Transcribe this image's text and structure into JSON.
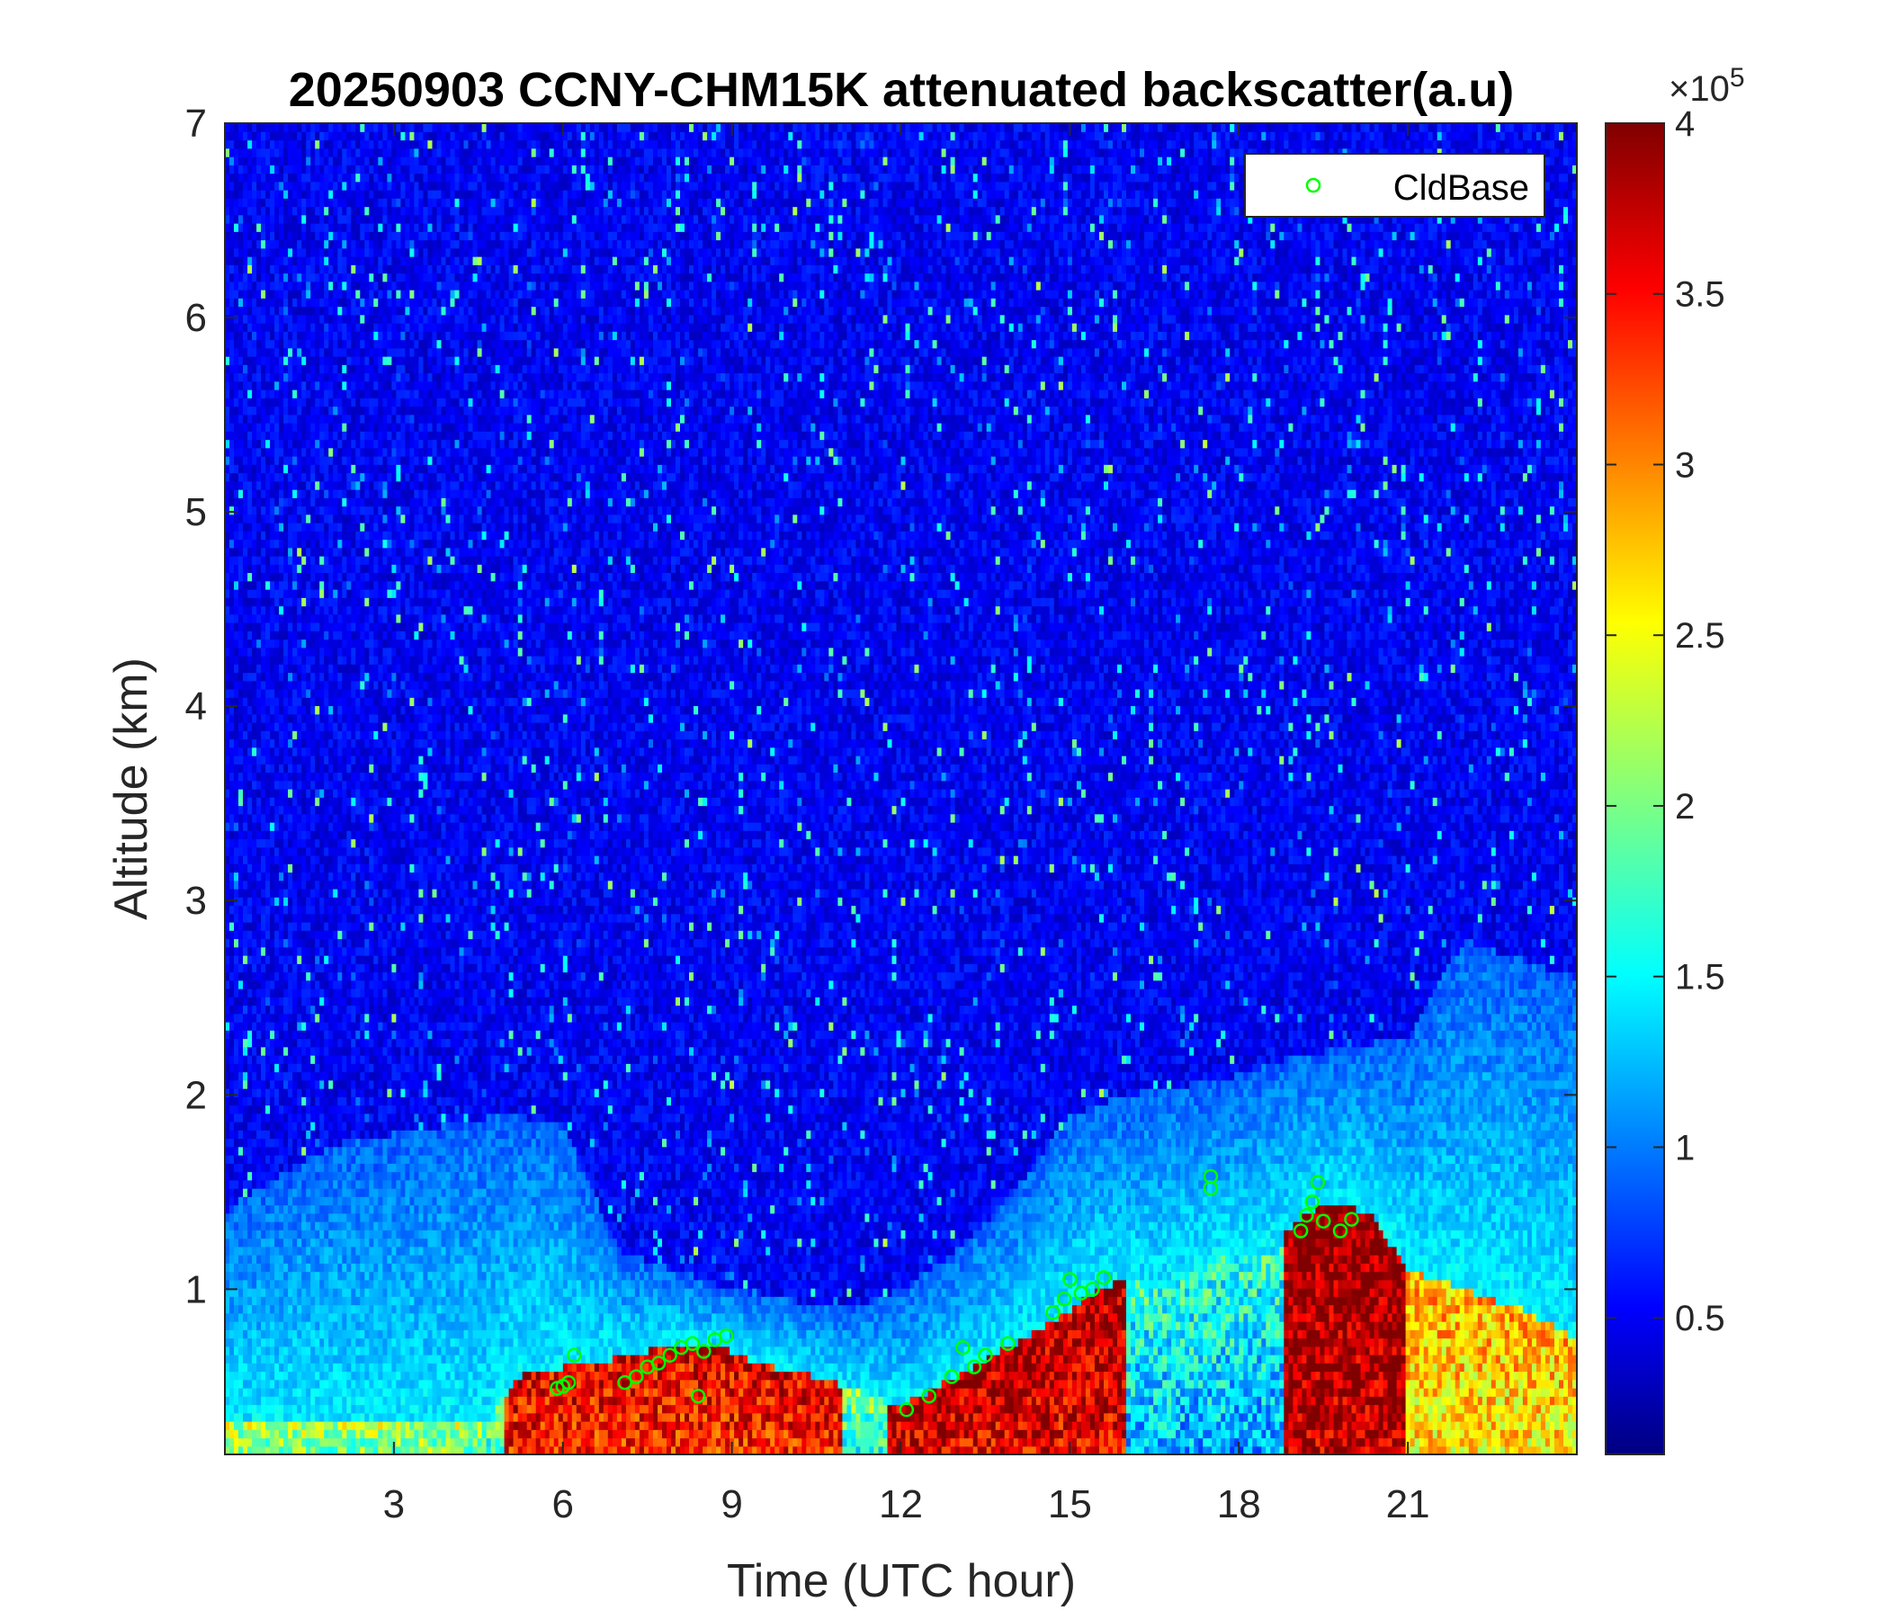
{
  "chart_data": {
    "type": "heatmap",
    "title": "20250903 CCNY-CHM15K attenuated backscatter(a.u)",
    "xlabel": "Time (UTC hour)",
    "ylabel": "Altitude (km)",
    "xlim": [
      0,
      24
    ],
    "ylim": [
      0.15,
      7
    ],
    "xticks": [
      3,
      6,
      9,
      12,
      15,
      18,
      21
    ],
    "yticks": [
      1,
      2,
      3,
      4,
      5,
      6,
      7
    ],
    "colormap": "jet",
    "clim": [
      0.1,
      4
    ],
    "colorbar_ticks": [
      0.5,
      1,
      1.5,
      2,
      2.5,
      3,
      3.5,
      4
    ],
    "colorbar_exponent": "×10",
    "colorbar_exponent_power": "5",
    "legend": {
      "label": "CldBase",
      "marker": "circle",
      "color": "#00ff00",
      "position": "top-right"
    },
    "grid": false,
    "cloud_base": [
      {
        "t": 5.9,
        "z": 0.49
      },
      {
        "t": 6.0,
        "z": 0.5
      },
      {
        "t": 6.1,
        "z": 0.52
      },
      {
        "t": 6.2,
        "z": 0.66
      },
      {
        "t": 7.1,
        "z": 0.52
      },
      {
        "t": 7.3,
        "z": 0.55
      },
      {
        "t": 7.5,
        "z": 0.6
      },
      {
        "t": 7.7,
        "z": 0.62
      },
      {
        "t": 7.9,
        "z": 0.66
      },
      {
        "t": 8.1,
        "z": 0.7
      },
      {
        "t": 8.3,
        "z": 0.72
      },
      {
        "t": 8.4,
        "z": 0.45
      },
      {
        "t": 8.5,
        "z": 0.68
      },
      {
        "t": 8.7,
        "z": 0.74
      },
      {
        "t": 8.9,
        "z": 0.76
      },
      {
        "t": 12.1,
        "z": 0.38
      },
      {
        "t": 12.5,
        "z": 0.45
      },
      {
        "t": 12.9,
        "z": 0.55
      },
      {
        "t": 13.1,
        "z": 0.7
      },
      {
        "t": 13.3,
        "z": 0.6
      },
      {
        "t": 13.5,
        "z": 0.66
      },
      {
        "t": 13.9,
        "z": 0.72
      },
      {
        "t": 14.7,
        "z": 0.88
      },
      {
        "t": 14.9,
        "z": 0.95
      },
      {
        "t": 15.0,
        "z": 1.05
      },
      {
        "t": 15.2,
        "z": 0.98
      },
      {
        "t": 15.4,
        "z": 1.0
      },
      {
        "t": 15.6,
        "z": 1.06
      },
      {
        "t": 17.5,
        "z": 1.52
      },
      {
        "t": 17.5,
        "z": 1.58
      },
      {
        "t": 19.1,
        "z": 1.3
      },
      {
        "t": 19.2,
        "z": 1.38
      },
      {
        "t": 19.3,
        "z": 1.45
      },
      {
        "t": 19.4,
        "z": 1.55
      },
      {
        "t": 19.5,
        "z": 1.35
      },
      {
        "t": 19.8,
        "z": 1.3
      },
      {
        "t": 20.0,
        "z": 1.36
      }
    ]
  }
}
